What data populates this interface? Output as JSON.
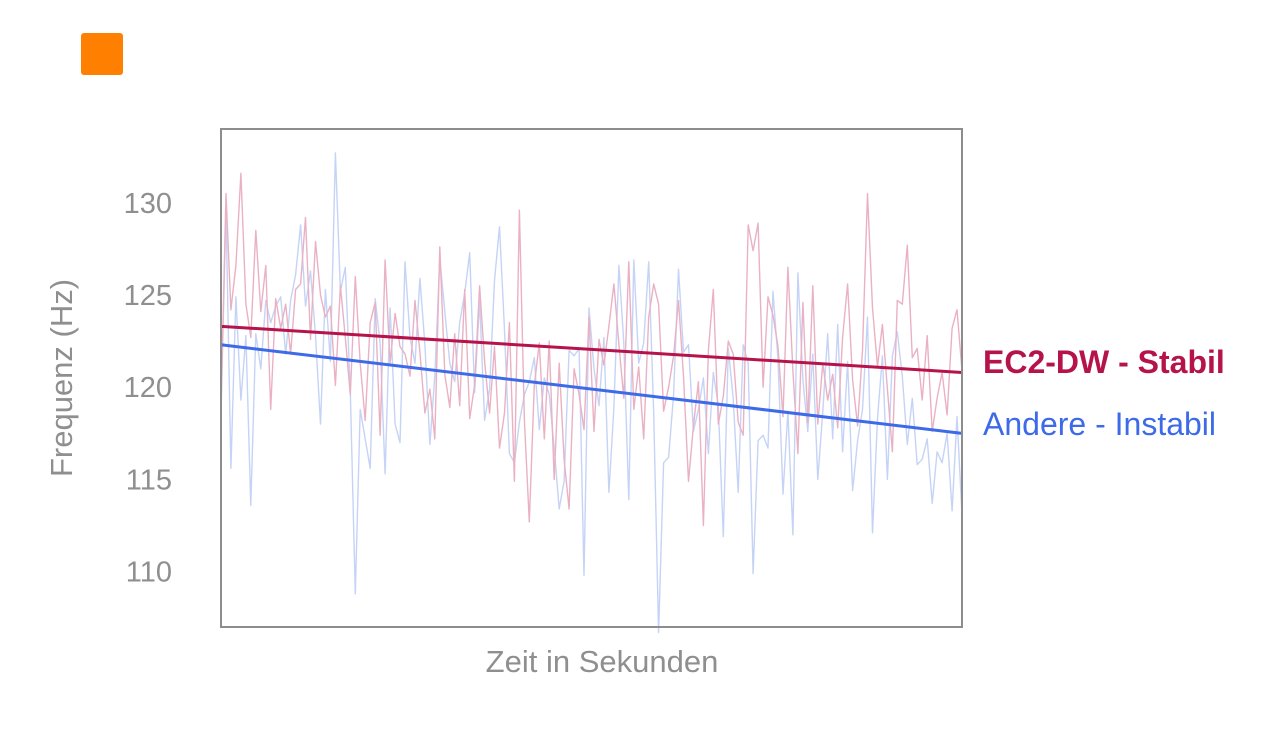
{
  "logo": {
    "color": "#ff8000"
  },
  "chart_data": {
    "type": "line",
    "title": "",
    "xlabel": "Zeit in Sekunden",
    "ylabel": "Frequenz (Hz)",
    "ylim": [
      107,
      134
    ],
    "yticks": [
      130,
      125,
      120,
      115,
      110
    ],
    "x_axis_ticks_shown": false,
    "grid": false,
    "legend_placement": "right, inline at line ends",
    "n_points": 150,
    "series": [
      {
        "name": "Andere - Instabil",
        "color": "#3d6ae8",
        "raw_color": "#c5d3f6",
        "trend": [
          122.3,
          117.5
        ],
        "values": [
          118.6,
          129.6,
          115.6,
          124.9,
          119.3,
          122.8,
          113.6,
          122.9,
          121.0,
          124.7,
          123.5,
          124.4,
          124.9,
          121.8,
          124.7,
          126.1,
          128.8,
          124.4,
          126.3,
          122.8,
          118.0,
          125.3,
          121.4,
          132.7,
          125.2,
          126.5,
          119.8,
          108.8,
          118.8,
          117.2,
          115.6,
          124.8,
          122.4,
          115.3,
          124.3,
          118.0,
          117.0,
          126.8,
          122.7,
          121.3,
          125.9,
          122.3,
          116.9,
          120.6,
          127.0,
          124.1,
          121.3,
          120.3,
          123.5,
          125.1,
          127.3,
          119.7,
          124.7,
          118.2,
          119.9,
          125.8,
          128.7,
          123.1,
          116.4,
          115.9,
          118.1,
          119.6,
          120.3,
          121.6,
          117.7,
          120.5,
          119.6,
          116.7,
          113.4,
          114.9,
          122.0,
          121.7,
          122.1,
          109.8,
          124.3,
          121.0,
          119.0,
          122.7,
          114.3,
          118.9,
          126.6,
          122.4,
          113.9,
          126.9,
          121.3,
          122.4,
          126.8,
          118.6,
          106.7,
          115.9,
          116.2,
          119.6,
          126.4,
          121.9,
          122.3,
          117.6,
          118.8,
          120.5,
          116.4,
          120.8,
          119.0,
          111.9,
          122.1,
          119.4,
          114.3,
          122.3,
          121.3,
          109.9,
          117.1,
          117.4,
          116.7,
          125.2,
          121.5,
          114.2,
          118.7,
          112.0,
          126.2,
          120.4,
          117.6,
          121.8,
          115.0,
          118.7,
          122.9,
          117.2,
          123.4,
          116.5,
          121.4,
          114.4,
          117.1,
          118.8,
          123.8,
          112.1,
          118.3,
          121.7,
          115.0,
          121.7,
          123.0,
          120.6,
          116.9,
          119.4,
          115.8,
          116.1,
          117.2,
          113.7,
          116.5,
          115.9,
          117.5,
          113.3,
          118.4,
          113.1
        ]
      },
      {
        "name": "EC2-DW - Stabil",
        "color": "#b5134a",
        "raw_color": "#eab1c3",
        "trend": [
          123.3,
          120.8
        ],
        "values": [
          118.9,
          130.5,
          124.2,
          126.6,
          131.6,
          124.5,
          122.7,
          128.5,
          124.1,
          126.6,
          118.8,
          124.8,
          123.2,
          124.5,
          121.8,
          125.3,
          125.6,
          129.2,
          122.6,
          127.9,
          125.0,
          123.8,
          124.4,
          120.1,
          125.5,
          122.7,
          119.6,
          126.0,
          121.3,
          118.2,
          123.5,
          124.6,
          117.4,
          126.9,
          121.3,
          124.0,
          122.2,
          121.8,
          120.6,
          124.7,
          121.9,
          118.6,
          119.9,
          117.2,
          127.6,
          120.7,
          118.9,
          122.9,
          119.0,
          125.3,
          118.3,
          120.1,
          125.5,
          121.4,
          118.6,
          122.2,
          116.7,
          118.6,
          123.5,
          114.9,
          129.6,
          118.2,
          112.7,
          120.1,
          122.4,
          117.2,
          122.5,
          115.0,
          121.3,
          116.1,
          113.4,
          121.0,
          119.6,
          117.7,
          123.8,
          117.6,
          122.6,
          121.2,
          123.3,
          125.6,
          122.3,
          119.4,
          126.8,
          118.8,
          121.1,
          117.2,
          123.8,
          125.6,
          124.5,
          118.7,
          120.0,
          121.7,
          124.7,
          120.6,
          114.9,
          117.9,
          120.3,
          112.5,
          122.0,
          125.3,
          118.0,
          119.5,
          122.5,
          121.8,
          118.1,
          117.4,
          128.8,
          127.4,
          128.9,
          120.0,
          124.9,
          123.9,
          122.2,
          118.4,
          126.5,
          120.9,
          116.4,
          124.6,
          118.1,
          125.5,
          118.0,
          121.3,
          119.3,
          120.7,
          117.8,
          122.7,
          125.6,
          120.4,
          117.9,
          122.0,
          130.5,
          124.3,
          121.1,
          123.4,
          119.9,
          116.5,
          124.7,
          124.5,
          127.7,
          121.6,
          122.1,
          119.3,
          122.8,
          117.6,
          119.4,
          120.8,
          118.5,
          123.2,
          124.2,
          120.9
        ]
      }
    ]
  }
}
